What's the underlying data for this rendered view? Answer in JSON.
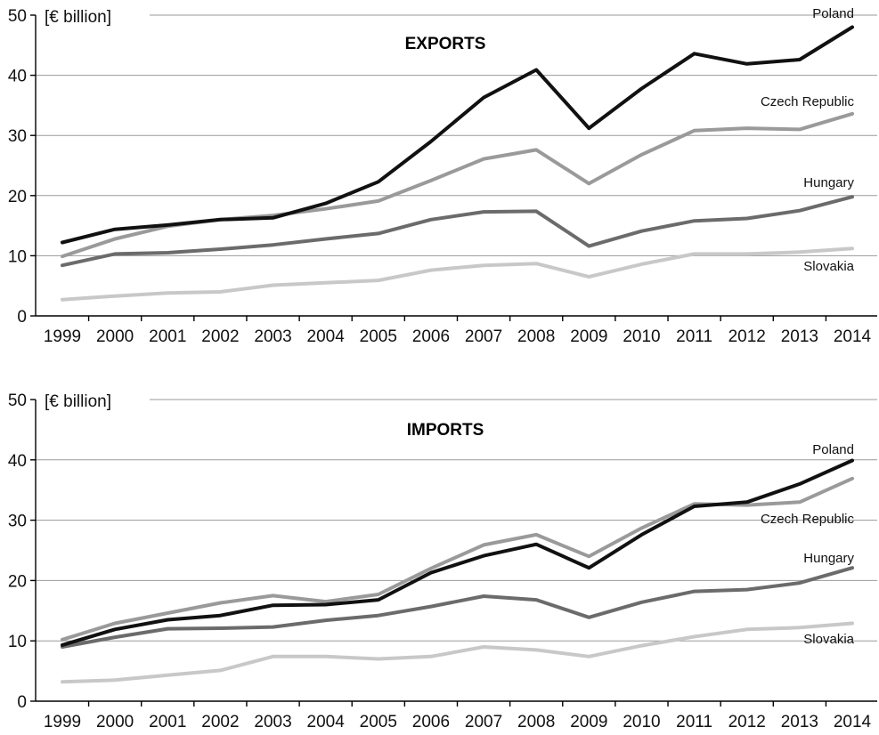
{
  "chart_data": [
    {
      "type": "line",
      "title": "EXPORTS",
      "ylabel": "[€ billion]",
      "ylim": [
        0,
        50
      ],
      "yticks": [
        0,
        10,
        20,
        30,
        40,
        50
      ],
      "grid": true,
      "x": [
        "1999",
        "2000",
        "2001",
        "2002",
        "2003",
        "2004",
        "2005",
        "2006",
        "2007",
        "2008",
        "2009",
        "2010",
        "2011",
        "2012",
        "2013",
        "2014"
      ],
      "series": [
        {
          "name": "Poland",
          "color": "#111111",
          "values": [
            12.2,
            14.4,
            15.1,
            16.0,
            16.3,
            18.7,
            22.3,
            29.0,
            36.3,
            40.9,
            31.2,
            37.8,
            43.6,
            41.9,
            42.6,
            48.0
          ]
        },
        {
          "name": "Czech Republic",
          "color": "#9a9a9a",
          "values": [
            9.9,
            12.8,
            14.9,
            16.0,
            16.7,
            17.8,
            19.1,
            22.5,
            26.1,
            27.6,
            22.0,
            26.8,
            30.8,
            31.2,
            31.0,
            33.6
          ]
        },
        {
          "name": "Hungary",
          "color": "#6b6b6b",
          "values": [
            8.4,
            10.3,
            10.5,
            11.1,
            11.8,
            12.8,
            13.7,
            16.0,
            17.3,
            17.4,
            11.6,
            14.1,
            15.8,
            16.2,
            17.5,
            19.8
          ]
        },
        {
          "name": "Slovakia",
          "color": "#c8c8c8",
          "values": [
            2.7,
            3.3,
            3.8,
            4.0,
            5.1,
            5.5,
            5.9,
            7.6,
            8.4,
            8.7,
            6.5,
            8.6,
            10.3,
            10.3,
            10.6,
            11.2
          ]
        }
      ]
    },
    {
      "type": "line",
      "title": "IMPORTS",
      "ylabel": "[€ billion]",
      "ylim": [
        0,
        50
      ],
      "yticks": [
        0,
        10,
        20,
        30,
        40,
        50
      ],
      "grid": true,
      "x": [
        "1999",
        "2000",
        "2001",
        "2002",
        "2003",
        "2004",
        "2005",
        "2006",
        "2007",
        "2008",
        "2009",
        "2010",
        "2011",
        "2012",
        "2013",
        "2014"
      ],
      "series": [
        {
          "name": "Poland",
          "color": "#111111",
          "values": [
            9.3,
            11.9,
            13.5,
            14.2,
            15.9,
            16.0,
            16.8,
            21.3,
            24.1,
            26.0,
            22.1,
            27.6,
            32.3,
            33.0,
            36.0,
            39.9
          ]
        },
        {
          "name": "Czech Republic",
          "color": "#9a9a9a",
          "values": [
            10.2,
            12.9,
            14.6,
            16.3,
            17.5,
            16.5,
            17.7,
            22.0,
            25.9,
            27.6,
            24.0,
            28.7,
            32.7,
            32.5,
            33.0,
            36.9
          ]
        },
        {
          "name": "Hungary",
          "color": "#6b6b6b",
          "values": [
            9.0,
            10.6,
            12.0,
            12.1,
            12.3,
            13.4,
            14.2,
            15.7,
            17.4,
            16.8,
            13.9,
            16.4,
            18.2,
            18.5,
            19.6,
            22.1
          ]
        },
        {
          "name": "Slovakia",
          "color": "#c8c8c8",
          "values": [
            3.2,
            3.5,
            4.3,
            5.1,
            7.4,
            7.4,
            7.0,
            7.4,
            9.0,
            8.5,
            7.4,
            9.2,
            10.7,
            11.9,
            12.2,
            12.9
          ]
        }
      ]
    }
  ]
}
